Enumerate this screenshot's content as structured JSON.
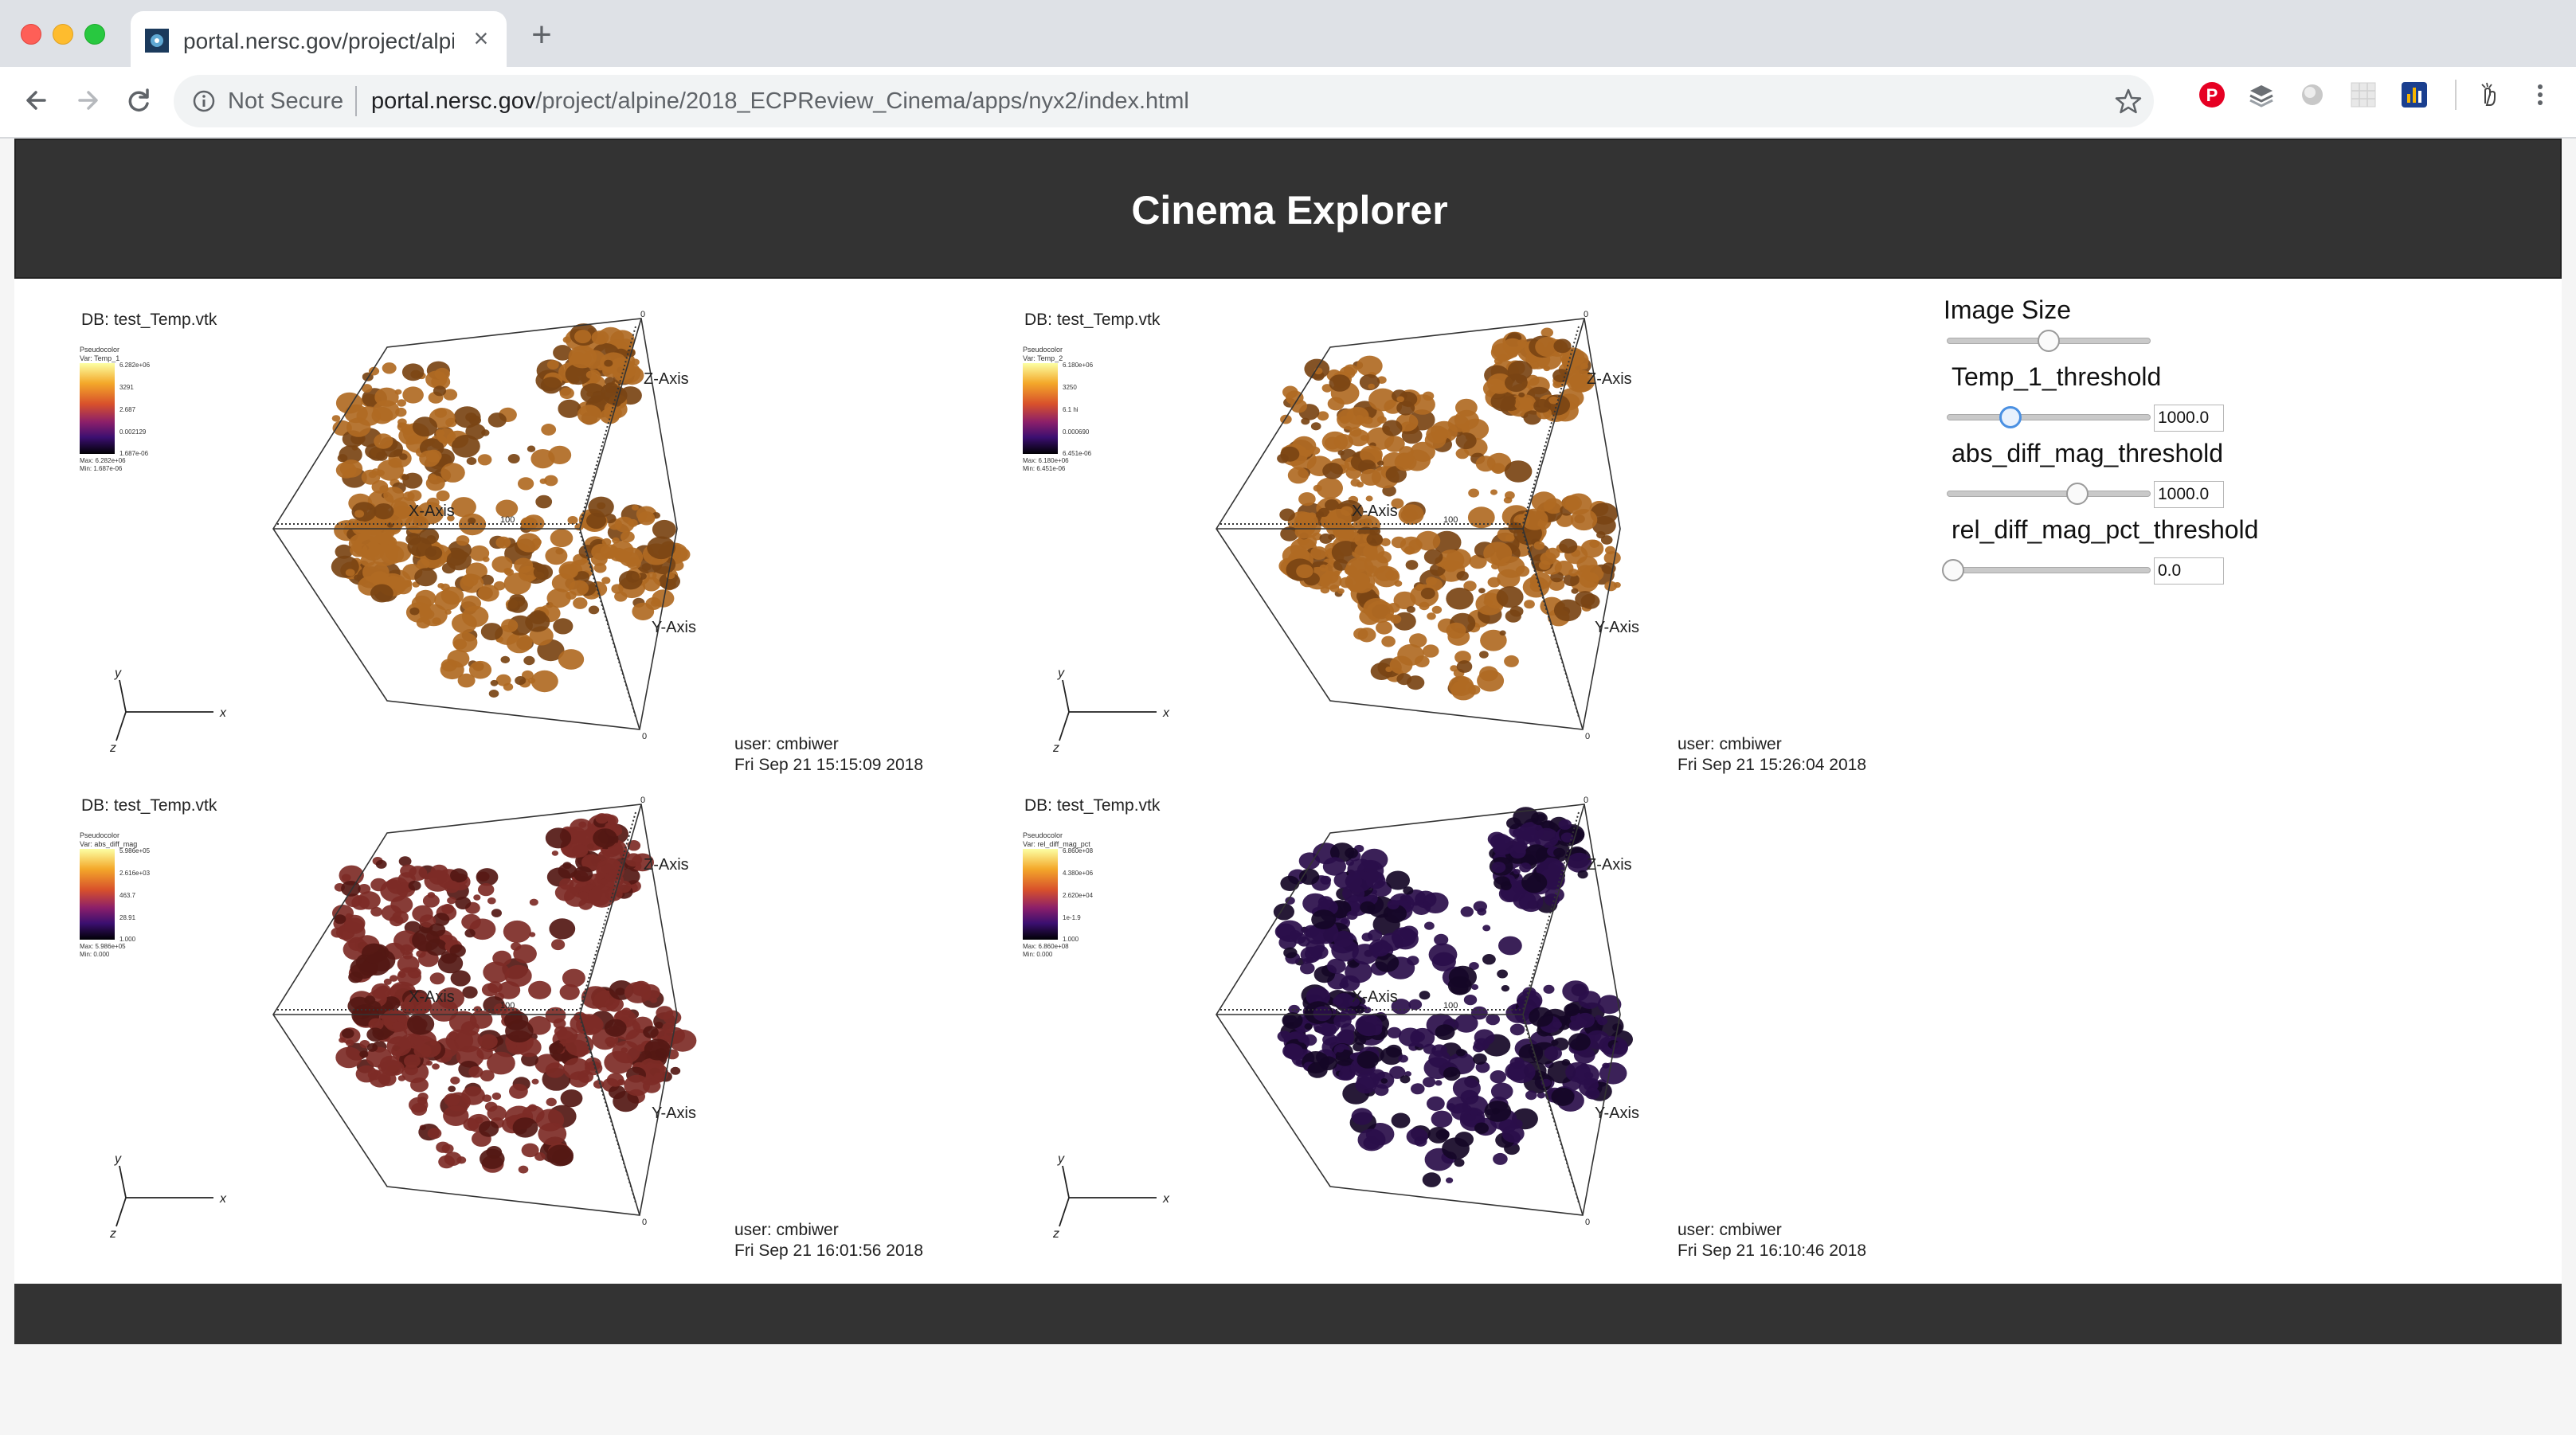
{
  "browser": {
    "tab_title": "portal.nersc.gov/project/alpine",
    "security_label": "Not Secure",
    "url_host": "portal.nersc.gov",
    "url_path": "/project/alpine/2018_ECPReview_Cinema/apps/nyx2/index.html",
    "colors": {
      "tabstrip": "#dee1e6",
      "omnibox": "#f1f3f4"
    }
  },
  "page": {
    "title": "Cinema Explorer",
    "colors": {
      "header": "#333333",
      "footer": "#333333",
      "body": "#ffffff"
    }
  },
  "panels": [
    {
      "db": "DB: test_Temp.vtk",
      "legend": {
        "title": "Pseudocolor\nVar: Temp_1",
        "ticks": [
          "6.282e+06",
          "3291",
          "2.687",
          "0.002129",
          "1.687e-06"
        ],
        "max": "Max: 6.282e+06",
        "min": "Min: 1.687e-06"
      },
      "user": "user: cmbiwer",
      "timestamp": "Fri Sep 21 15:15:09 2018",
      "fill": "#b06a23",
      "shade": "#7a4414"
    },
    {
      "db": "DB: test_Temp.vtk",
      "legend": {
        "title": "Pseudocolor\nVar: Temp_2",
        "ticks": [
          "6.180e+06",
          "3250",
          "6.1 hi",
          "0.000690",
          "6.451e-06"
        ],
        "max": "Max: 6.180e+06",
        "min": "Min: 6.451e-06"
      },
      "user": "user: cmbiwer",
      "timestamp": "Fri Sep 21 15:26:04 2018",
      "fill": "#b06a23",
      "shade": "#7a4414"
    },
    {
      "db": "DB: test_Temp.vtk",
      "legend": {
        "title": "Pseudocolor\nVar: abs_diff_mag",
        "ticks": [
          "5.986e+05",
          "2.616e+03",
          "463.7",
          "28.91",
          "1.000"
        ],
        "max": "Max: 5.986e+05",
        "min": "Min: 0.000"
      },
      "user": "user: cmbiwer",
      "timestamp": "Fri Sep 21 16:01:56 2018",
      "fill": "#7d2b26",
      "shade": "#541814"
    },
    {
      "db": "DB: test_Temp.vtk",
      "legend": {
        "title": "Pseudocolor\nVar: rel_diff_mag_pct",
        "ticks": [
          "6.860e+08",
          "4.380e+06",
          "2.620e+04",
          "1e-1.9",
          "1.000"
        ],
        "max": "Max: 6.860e+08",
        "min": "Min: 0.000"
      },
      "user": "user: cmbiwer",
      "timestamp": "Fri Sep 21 16:10:46 2018",
      "fill": "#2a0e4a",
      "shade": "#150626"
    }
  ],
  "render_labels": {
    "x_axis": "X-Axis",
    "y_axis": "Y-Axis",
    "z_axis": "Z-Axis",
    "tick_100": "100",
    "tick_0": "0"
  },
  "triad": {
    "x": "x",
    "y": "y",
    "z": "z"
  },
  "controls": {
    "image_size": {
      "label": "Image Size",
      "value": 0.5
    },
    "temp_threshold": {
      "label": "Temp_1_threshold",
      "value": "1000.0",
      "position": 0.3
    },
    "abs_threshold": {
      "label": "abs_diff_mag_threshold",
      "value": "1000.0",
      "position": 0.65
    },
    "rel_threshold": {
      "label": "rel_diff_mag_pct_threshold",
      "value": "0.0",
      "position": 0.0
    }
  }
}
